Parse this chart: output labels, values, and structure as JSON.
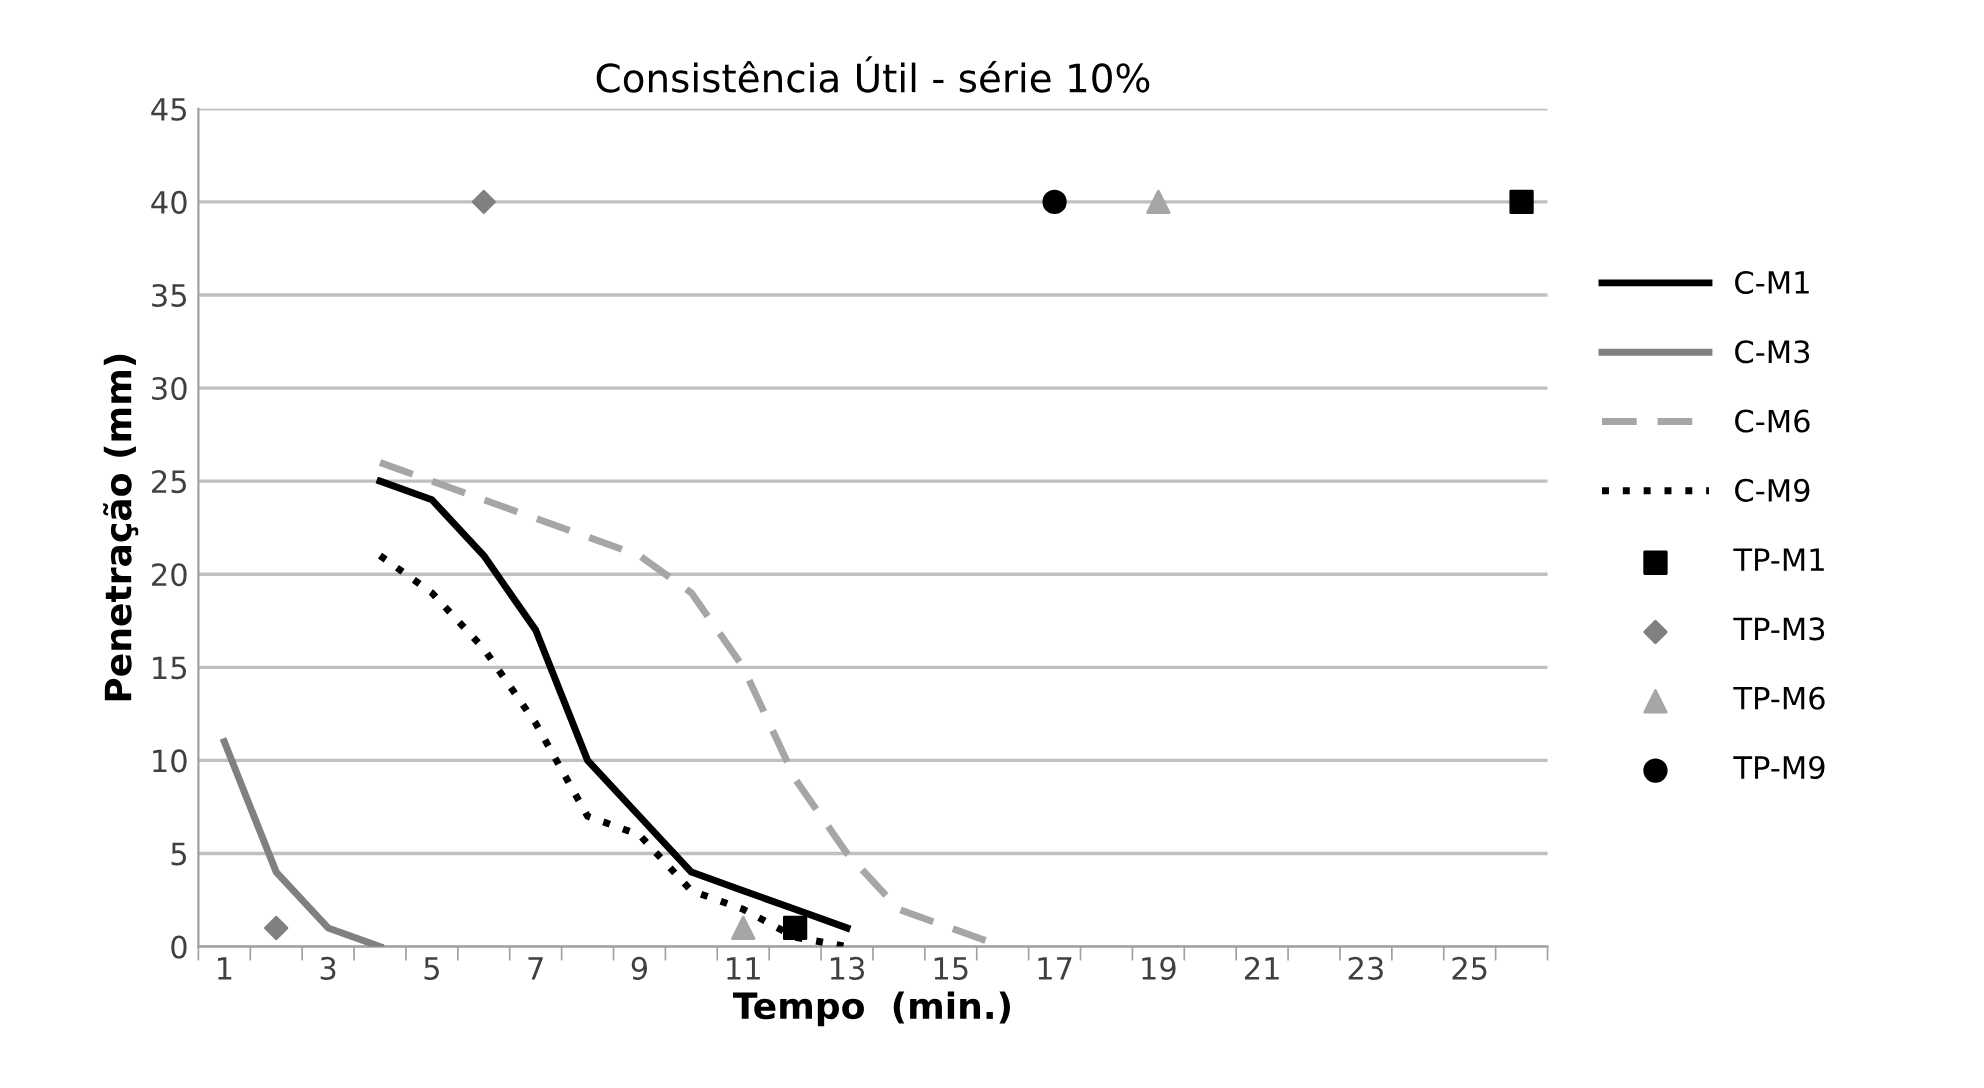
{
  "chart_data": {
    "type": "line",
    "title": "Consistência Útil - série 10%",
    "xlabel": "Tempo  (min.)",
    "ylabel": "Penetração (mm)",
    "categories": [
      "1",
      null,
      "3",
      null,
      "5",
      null,
      "7",
      null,
      "9",
      null,
      "11",
      null,
      "13",
      null,
      "15",
      null,
      "17",
      null,
      "19",
      null,
      "21",
      null,
      "23",
      null,
      "25",
      null
    ],
    "ylim": [
      0,
      45
    ],
    "yticks": [
      0,
      5,
      10,
      15,
      20,
      25,
      30,
      35,
      40,
      45
    ],
    "grid": "y",
    "legend": "right",
    "series": [
      {
        "name": "C-M1",
        "color": "#000000",
        "line_style": "solid",
        "values": [
          null,
          null,
          null,
          25,
          24,
          21,
          17,
          10,
          7,
          4,
          3,
          2,
          1,
          null,
          null,
          null,
          null,
          null,
          null,
          null,
          null,
          null,
          null,
          null,
          null,
          null
        ]
      },
      {
        "name": "C-M3",
        "color": "#808080",
        "line_style": "solid",
        "values": [
          11,
          4,
          1,
          0,
          null,
          null,
          null,
          null,
          null,
          null,
          null,
          null,
          null,
          null,
          null,
          null,
          null,
          null,
          null,
          null,
          null,
          null,
          null,
          null,
          null,
          null
        ]
      },
      {
        "name": "C-M6",
        "color": "#a6a6a6",
        "line_style": "dashed",
        "values": [
          null,
          null,
          null,
          26,
          25,
          24,
          23,
          22,
          21,
          19,
          15,
          9,
          5,
          2,
          1,
          0,
          null,
          null,
          null,
          null,
          null,
          null,
          null,
          null,
          null,
          null
        ]
      },
      {
        "name": "C-M9",
        "color": "#000000",
        "line_style": "dotted",
        "values": [
          null,
          null,
          null,
          21,
          19,
          16,
          12,
          7,
          6,
          3,
          2,
          0.5,
          0,
          null,
          null,
          null,
          null,
          null,
          null,
          null,
          null,
          null,
          null,
          null,
          null,
          null
        ]
      },
      {
        "name": "TP-M1",
        "type": "scatter",
        "color": "#000000",
        "marker": "square",
        "values": [
          null,
          null,
          null,
          null,
          null,
          null,
          null,
          null,
          null,
          null,
          null,
          1,
          null,
          null,
          null,
          null,
          null,
          null,
          null,
          null,
          null,
          null,
          null,
          null,
          null,
          40
        ]
      },
      {
        "name": "TP-M3",
        "type": "scatter",
        "color": "#808080",
        "marker": "diamond",
        "values": [
          null,
          1,
          null,
          null,
          null,
          40,
          null,
          null,
          null,
          null,
          null,
          null,
          null,
          null,
          null,
          null,
          null,
          null,
          null,
          null,
          null,
          null,
          null,
          null,
          null,
          null
        ]
      },
      {
        "name": "TP-M6",
        "type": "scatter",
        "color": "#a6a6a6",
        "marker": "triangle",
        "values": [
          null,
          null,
          null,
          null,
          null,
          null,
          null,
          null,
          null,
          null,
          1,
          null,
          null,
          null,
          null,
          null,
          null,
          null,
          40,
          null,
          null,
          null,
          null,
          null,
          null,
          null
        ]
      },
      {
        "name": "TP-M9",
        "type": "scatter",
        "color": "#000000",
        "marker": "circle",
        "values": [
          null,
          null,
          null,
          null,
          null,
          null,
          null,
          null,
          null,
          null,
          null,
          null,
          null,
          null,
          null,
          null,
          40,
          null,
          null,
          null,
          null,
          null,
          null,
          null,
          null,
          null
        ]
      }
    ]
  }
}
